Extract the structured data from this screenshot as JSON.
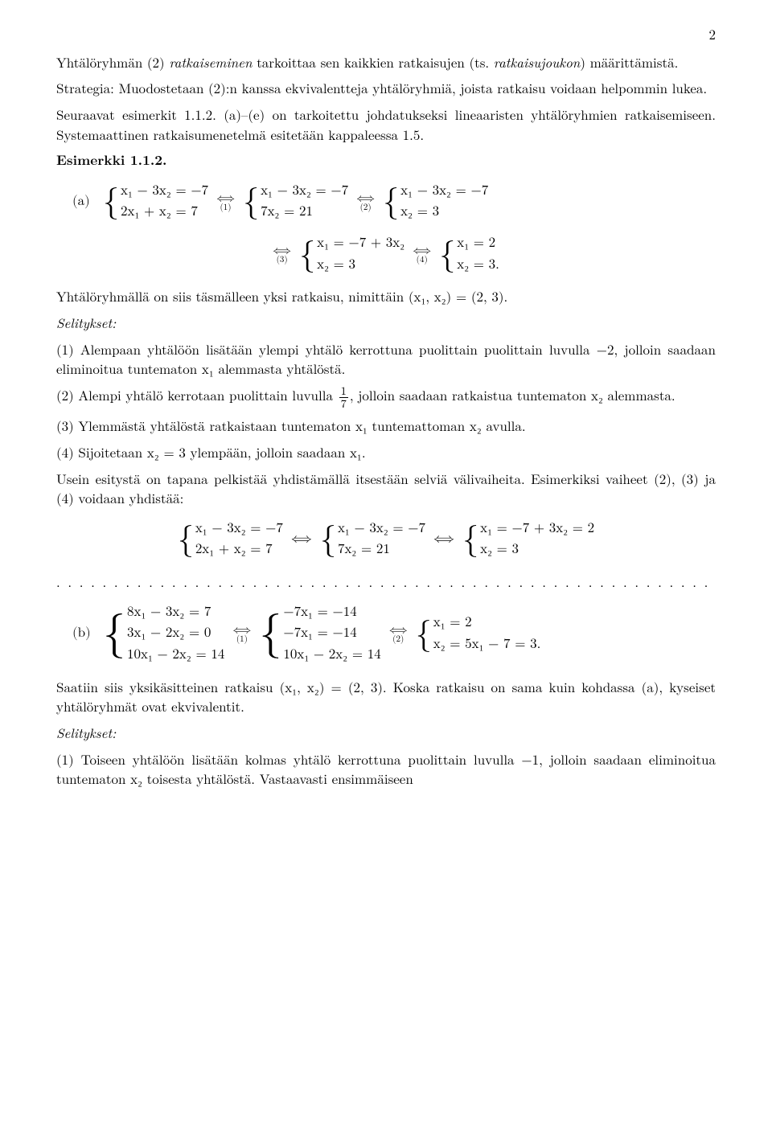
{
  "page_number": "2",
  "p1a": "Yhtälöryhmän (2) ",
  "p1b": "ratkaiseminen",
  "p1c": " tarkoittaa sen kaikkien ratkaisujen (ts. ",
  "p1d": "ratkaisujoukon",
  "p1e": ") määrittämistä.",
  "p2": "Strategia: Muodostetaan (2):n kanssa ekvivalentteja yhtälöryhmiä, joista ratkaisu voidaan helpommin lukea.",
  "p3": "Seuraavat esimerkit 1.1.2. (a)–(e) on tarkoitettu johdatukseksi lineaaristen yhtälöryhmien ratkaisemiseen. Systemaattinen ratkaisumenetelmä esitetään kappaleessa 1.5.",
  "ex_label": "Esimerkki 1.1.2.",
  "part_a": "(a)",
  "part_b": "(b)",
  "sysA1_l1": "x₁ − 3x₂ = −7",
  "sysA1_l2": "2x₁ +  x₂ =  7",
  "tag1": "(1)",
  "sysA2_l1": "x₁ − 3x₂ = −7",
  "sysA2_l2": "7x₂ = 21",
  "tag2": "(2)",
  "sysA3_l1": "x₁ − 3x₂ = −7",
  "sysA3_l2": "x₂ =  3",
  "tag3": "(3)",
  "sysA4_l1": "x₁ = −7 + 3x₂",
  "sysA4_l2": "x₂ = 3",
  "tag4": "(4)",
  "sysA5_l1": "x₁ = 2",
  "sysA5_l2": "x₂ = 3.",
  "p4": "Yhtälöryhmällä on siis täsmälleen yksi ratkaisu, nimittäin (x₁, x₂) = (2, 3).",
  "selitykset": "Selitykset:",
  "s1": "(1) Alempaan yhtälöön lisätään ylempi yhtälö kerrottuna puolittain puolittain luvulla −2, jolloin saadaan eliminoitua tuntematon x₁ alemmasta yhtälöstä.",
  "s2a": "(2) Alempi yhtälö kerrotaan puolittain luvulla ",
  "s2b": ", jolloin saadaan ratkaistua tuntematon x₂ alemmasta.",
  "s3": "(3) Ylemmästä yhtälöstä ratkaistaan tuntematon x₁ tuntemattoman x₂ avulla.",
  "s4": "(4) Sijoitetaan x₂ = 3 ylempään, jolloin saadaan x₁.",
  "p5": "Usein esitystä on tapana pelkistää yhdistämällä itsestään selviä välivaiheita. Esimerkiksi vaiheet (2), (3) ja (4) voidaan yhdistää:",
  "sysC1_l1": "x₁ − 3x₂ = −7",
  "sysC1_l2": "2x₁ +  x₂ =  7",
  "sysC2_l1": "x₁ − 3x₂ = −7",
  "sysC2_l2": "7x₂ = 21",
  "sysC3_l1": "x₁ = −7 + 3x₂ = 2",
  "sysC3_l2": "x₂ = 3",
  "dotsline": ". . . . . . . . . . . . . . . . . . . . . . . . . . . . . . . . . . . . . . . . . . . . . . . . . . . . . . . . . . . . . . . . . . . . . . . . .",
  "sysB1_l1": "8x₁ − 3x₂ =  7",
  "sysB1_l2": "3x₁ − 2x₂ =  0",
  "sysB1_l3": "10x₁ − 2x₂ = 14",
  "sysB2_l1": "−7x₁        = −14",
  "sysB2_l2": "−7x₁        = −14",
  "sysB2_l3": "10x₁ − 2x₂ =  14",
  "sysB3_l1": "x₁ = 2",
  "sysB3_l2": "x₂ = 5x₁ − 7 = 3.",
  "p6": "Saatiin siis yksikäsitteinen ratkaisu (x₁, x₂) = (2, 3). Koska ratkaisu on sama kuin kohdassa (a), kyseiset yhtälöryhmät ovat ekvivalentit.",
  "sb1": "(1) Toiseen yhtälöön lisätään kolmas yhtälö kerrottuna puolittain luvulla −1, jolloin saadaan eliminoitua tuntematon x₂ toisesta yhtälöstä. Vastaavasti ensimmäiseen",
  "iff_arrow": "⟺",
  "frac_num": "1",
  "frac_den": "7"
}
